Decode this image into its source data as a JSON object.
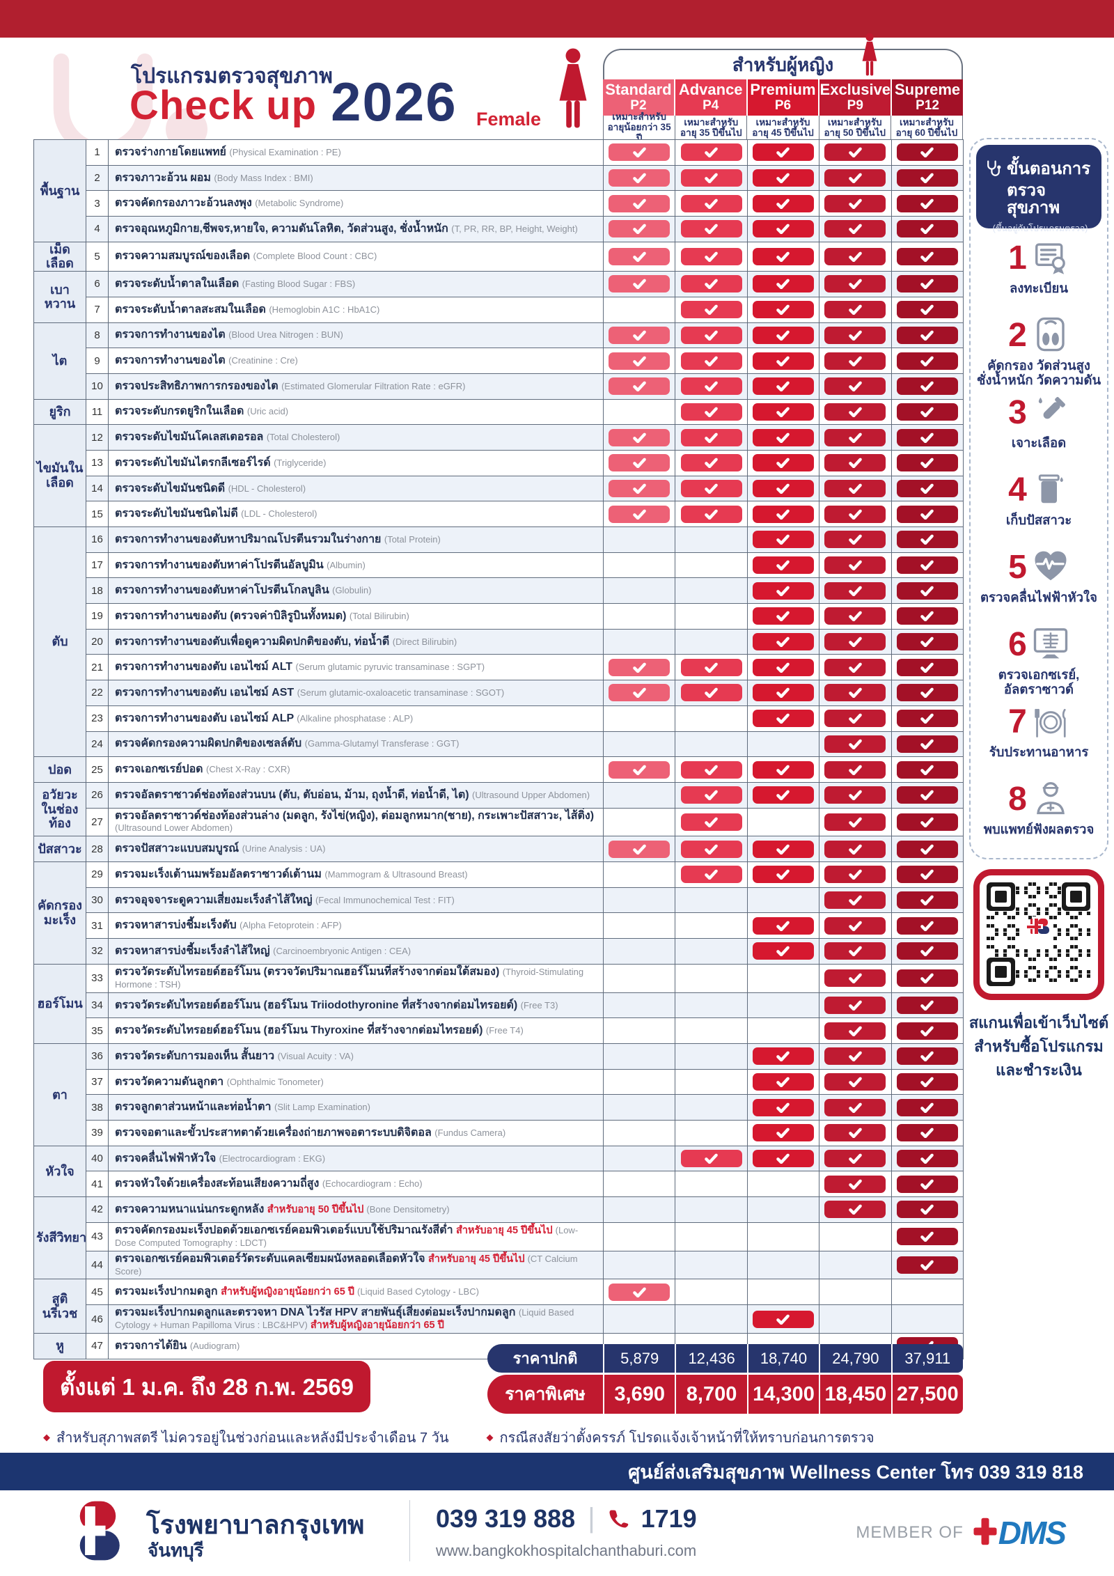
{
  "page": {
    "title_th": "โปรแกรมตรวจสุขภาพ",
    "checkup": "Check up",
    "year": "2026",
    "female": "Female",
    "group_header": "สำหรับผู้หญิง",
    "promo_period": "ตั้งแต่ 1 ม.ค. ถึง 28 ก.พ. 2569",
    "footnote1": "สำหรับสุภาพสตรี ไม่ควรอยู่ในช่วงก่อนและหลังมีประจำเดือน 7 วัน",
    "footnote2": "กรณีสงสัยว่าตั้งครรภ์ โปรดแจ้งเจ้าหน้าที่ให้ทราบก่อนการตรวจ",
    "wellness_bar": "ศูนย์ส่งเสริมสุขภาพ Wellness Center โทร 039 319 818"
  },
  "price_labels": {
    "normal": "ราคาปกติ",
    "special": "ราคาพิเศษ"
  },
  "programs": [
    {
      "name": "Standard",
      "code": "P2",
      "age": "เหมาะสำหรับ\nอายุน้อยกว่า 35 ปี",
      "color": "#ed6176",
      "price_normal": "5,879",
      "price_special": "3,690"
    },
    {
      "name": "Advance",
      "code": "P4",
      "age": "เหมาะสำหรับ\nอายุ 35 ปีขึ้นไป",
      "color": "#e63a52",
      "price_normal": "12,436",
      "price_special": "8,700"
    },
    {
      "name": "Premium",
      "code": "P6",
      "age": "เหมาะสำหรับ\nอายุ 45 ปีขึ้นไป",
      "color": "#d6182f",
      "price_normal": "18,740",
      "price_special": "14,300"
    },
    {
      "name": "Exclusive",
      "code": "P9",
      "age": "เหมาะสำหรับ\nอายุ 50 ปีขึ้นไป",
      "color": "#bf1b32",
      "price_normal": "24,790",
      "price_special": "18,450"
    },
    {
      "name": "Supreme",
      "code": "P12",
      "age": "เหมาะสำหรับ\nอายุ 60 ปีขึ้นไป",
      "color": "#a31127",
      "price_normal": "37,911",
      "price_special": "27,500"
    }
  ],
  "categories": [
    {
      "label": "พื้นฐาน",
      "span": 4
    },
    {
      "label": "เม็ดเลือด",
      "span": 1
    },
    {
      "label": "เบาหวาน",
      "span": 2
    },
    {
      "label": "ไต",
      "span": 3
    },
    {
      "label": "ยูริก",
      "span": 1
    },
    {
      "label": "ไขมันในเลือด",
      "span": 4
    },
    {
      "label": "ตับ",
      "span": 9
    },
    {
      "label": "ปอด",
      "span": 1
    },
    {
      "label": "อวัยวะในช่องท้อง",
      "span": 2
    },
    {
      "label": "ปัสสาวะ",
      "span": 1
    },
    {
      "label": "คัดกรองมะเร็ง",
      "span": 4
    },
    {
      "label": "ฮอร์โมน",
      "span": 3
    },
    {
      "label": "ตา",
      "span": 4
    },
    {
      "label": "หัวใจ",
      "span": 2
    },
    {
      "label": "รังสีวิทยา",
      "span": 3
    },
    {
      "label": "สูตินรีเวช",
      "span": 2
    },
    {
      "label": "หู",
      "span": 1
    }
  ],
  "rows": [
    {
      "no": 1,
      "th": "ตรวจร่างกายโดยแพทย์",
      "en": "(Physical Examination : PE)",
      "checks": [
        1,
        1,
        1,
        1,
        1
      ]
    },
    {
      "no": 2,
      "th": "ตรวจภาวะอ้วน ผอม",
      "en": "(Body Mass Index : BMI)",
      "checks": [
        1,
        1,
        1,
        1,
        1
      ]
    },
    {
      "no": 3,
      "th": "ตรวจคัดกรองภาวะอ้วนลงพุง",
      "en": "(Metabolic Syndrome)",
      "checks": [
        1,
        1,
        1,
        1,
        1
      ]
    },
    {
      "no": 4,
      "th": "ตรวจอุณหภูมิกาย,ชีพจร,หายใจ, ความดันโลหิต, วัดส่วนสูง, ชั่งน้ำหนัก",
      "en": "(T, PR, RR, BP, Height, Weight)",
      "checks": [
        1,
        1,
        1,
        1,
        1
      ]
    },
    {
      "no": 5,
      "th": "ตรวจความสมบูรณ์ของเลือด",
      "en": "(Complete Blood Count : CBC)",
      "checks": [
        1,
        1,
        1,
        1,
        1
      ]
    },
    {
      "no": 6,
      "th": "ตรวจระดับน้ำตาลในเลือด",
      "en": "(Fasting Blood Sugar : FBS)",
      "checks": [
        1,
        1,
        1,
        1,
        1
      ]
    },
    {
      "no": 7,
      "th": "ตรวจระดับน้ำตาลสะสมในเลือด",
      "en": "(Hemoglobin A1C : HbA1C)",
      "checks": [
        0,
        1,
        1,
        1,
        1
      ]
    },
    {
      "no": 8,
      "th": "ตรวจการทำงานของไต",
      "en": "(Blood Urea Nitrogen : BUN)",
      "checks": [
        1,
        1,
        1,
        1,
        1
      ]
    },
    {
      "no": 9,
      "th": "ตรวจการทำงานของไต",
      "en": "(Creatinine : Cre)",
      "checks": [
        1,
        1,
        1,
        1,
        1
      ]
    },
    {
      "no": 10,
      "th": "ตรวจประสิทธิภาพการกรองของไต",
      "en": "(Estimated Glomerular Filtration Rate : eGFR)",
      "checks": [
        1,
        1,
        1,
        1,
        1
      ]
    },
    {
      "no": 11,
      "th": "ตรวจระดับกรดยูริกในเลือด",
      "en": "(Uric acid)",
      "checks": [
        0,
        1,
        1,
        1,
        1
      ]
    },
    {
      "no": 12,
      "th": "ตรวจระดับไขมันโคเลสเตอรอล",
      "en": "(Total Cholesterol)",
      "checks": [
        1,
        1,
        1,
        1,
        1
      ]
    },
    {
      "no": 13,
      "th": "ตรวจระดับไขมันไตรกลีเซอร์ไรด์",
      "en": "(Triglyceride)",
      "checks": [
        1,
        1,
        1,
        1,
        1
      ]
    },
    {
      "no": 14,
      "th": "ตรวจระดับไขมันชนิดดี",
      "en": "(HDL - Cholesterol)",
      "checks": [
        1,
        1,
        1,
        1,
        1
      ]
    },
    {
      "no": 15,
      "th": "ตรวจระดับไขมันชนิดไม่ดี",
      "en": "(LDL - Cholesterol)",
      "checks": [
        1,
        1,
        1,
        1,
        1
      ]
    },
    {
      "no": 16,
      "th": "ตรวจการทำงานของตับหาปริมาณโปรตีนรวมในร่างกาย",
      "en": "(Total Protein)",
      "checks": [
        0,
        0,
        1,
        1,
        1
      ]
    },
    {
      "no": 17,
      "th": "ตรวจการทำงานของตับหาค่าโปรตีนอัลบูมิน",
      "en": "(Albumin)",
      "checks": [
        0,
        0,
        1,
        1,
        1
      ]
    },
    {
      "no": 18,
      "th": "ตรวจการทำงานของตับหาค่าโปรตีนโกลบูลิน",
      "en": "(Globulin)",
      "checks": [
        0,
        0,
        1,
        1,
        1
      ]
    },
    {
      "no": 19,
      "th": "ตรวจการทำงานของตับ (ตรวจค่าบิลิรูบินทั้งหมด)",
      "en": "(Total Bilirubin)",
      "checks": [
        0,
        0,
        1,
        1,
        1
      ]
    },
    {
      "no": 20,
      "th": "ตรวจการทำงานของตับเพื่อดูความผิดปกติของตับ, ท่อน้ำดี",
      "en": "(Direct Bilirubin)",
      "checks": [
        0,
        0,
        1,
        1,
        1
      ]
    },
    {
      "no": 21,
      "th": "ตรวจการทำงานของตับ เอนไซม์ ALT",
      "en": "(Serum glutamic pyruvic transaminase : SGPT)",
      "checks": [
        1,
        1,
        1,
        1,
        1
      ]
    },
    {
      "no": 22,
      "th": "ตรวจการทำงานของตับ เอนไซม์ AST",
      "en": "(Serum glutamic-oxaloacetic transaminase : SGOT)",
      "checks": [
        1,
        1,
        1,
        1,
        1
      ]
    },
    {
      "no": 23,
      "th": "ตรวจการทำงานของตับ เอนไซม์ ALP",
      "en": "(Alkaline phosphatase : ALP)",
      "checks": [
        0,
        0,
        1,
        1,
        1
      ]
    },
    {
      "no": 24,
      "th": "ตรวจคัดกรองความผิดปกติของเซลล์ตับ",
      "en": "(Gamma-Glutamyl Transferase : GGT)",
      "checks": [
        0,
        0,
        0,
        1,
        1
      ]
    },
    {
      "no": 25,
      "th": "ตรวจเอกซเรย์ปอด",
      "en": "(Chest X-Ray : CXR)",
      "checks": [
        1,
        1,
        1,
        1,
        1
      ]
    },
    {
      "no": 26,
      "th": "ตรวจอัลตราซาวด์ช่องท้องส่วนบน (ตับ, ตับอ่อน, ม้าม, ถุงน้ำดี, ท่อน้ำดี, ไต)",
      "en": "(Ultrasound Upper Abdomen)",
      "checks": [
        0,
        1,
        1,
        1,
        1
      ]
    },
    {
      "no": 27,
      "th": "ตรวจอัลตราซาวด์ช่องท้องส่วนล่าง (มดลูก, รังไข่(หญิง), ต่อมลูกหมาก(ชาย), กระเพาะปัสสาวะ, ไส้ติ่ง)",
      "en": "(Ultrasound Lower Abdomen)",
      "checks": [
        0,
        1,
        0,
        1,
        1
      ]
    },
    {
      "no": 28,
      "th": "ตรวจปัสสาวะแบบสมบูรณ์",
      "en": "(Urine Analysis : UA)",
      "checks": [
        1,
        1,
        1,
        1,
        1
      ]
    },
    {
      "no": 29,
      "th": "ตรวจมะเร็งเต้านมพร้อมอัลตราซาวด์เต้านม",
      "en": "(Mammogram & Ultrasound Breast)",
      "checks": [
        0,
        1,
        1,
        1,
        1
      ]
    },
    {
      "no": 30,
      "th": "ตรวจอุจจาระดูความเสี่ยงมะเร็งลำไส้ใหญ่",
      "en": "(Fecal Immunochemical Test : FIT)",
      "checks": [
        0,
        0,
        0,
        1,
        1
      ]
    },
    {
      "no": 31,
      "th": "ตรวจหาสารบ่งชี้มะเร็งตับ",
      "en": "(Alpha Fetoprotein : AFP)",
      "checks": [
        0,
        0,
        1,
        1,
        1
      ]
    },
    {
      "no": 32,
      "th": "ตรวจหาสารบ่งชี้มะเร็งลำไส้ใหญ่",
      "en": "(Carcinoembryonic Antigen : CEA)",
      "checks": [
        0,
        0,
        1,
        1,
        1
      ]
    },
    {
      "no": 33,
      "th": "ตรวจวัดระดับไทรอยด์ฮอร์โมน (ตรวจวัดปริมาณฮอร์โมนที่สร้างจากต่อมใต้สมอง)",
      "en": "(Thyroid-Stimulating Hormone : TSH)",
      "checks": [
        0,
        0,
        0,
        1,
        1
      ]
    },
    {
      "no": 34,
      "th": "ตรวจวัดระดับไทรอยด์ฮอร์โมน (ฮอร์โมน Triiodothyronine ที่สร้างจากต่อมไทรอยด์)",
      "en": "(Free T3)",
      "checks": [
        0,
        0,
        0,
        1,
        1
      ]
    },
    {
      "no": 35,
      "th": "ตรวจวัดระดับไทรอยด์ฮอร์โมน (ฮอร์โมน Thyroxine ที่สร้างจากต่อมไทรอยด์)",
      "en": "(Free T4)",
      "checks": [
        0,
        0,
        0,
        1,
        1
      ]
    },
    {
      "no": 36,
      "th": "ตรวจวัดระดับการมองเห็น สั้นยาว",
      "en": "(Visual Acuity : VA)",
      "checks": [
        0,
        0,
        1,
        1,
        1
      ]
    },
    {
      "no": 37,
      "th": "ตรวจวัดความดันลูกตา",
      "en": "(Ophthalmic Tonometer)",
      "checks": [
        0,
        0,
        1,
        1,
        1
      ]
    },
    {
      "no": 38,
      "th": "ตรวจลูกตาส่วนหน้าและท่อน้ำตา",
      "en": "(Slit Lamp Examination)",
      "checks": [
        0,
        0,
        1,
        1,
        1
      ]
    },
    {
      "no": 39,
      "th": "ตรวจจอตาและขั้วประสาทตาด้วยเครื่องถ่ายภาพจอตาระบบดิจิตอล",
      "en": "(Fundus Camera)",
      "checks": [
        0,
        0,
        1,
        1,
        1
      ]
    },
    {
      "no": 40,
      "th": "ตรวจคลื่นไฟฟ้าหัวใจ",
      "en": "(Electrocardiogram : EKG)",
      "checks": [
        0,
        1,
        1,
        1,
        1
      ]
    },
    {
      "no": 41,
      "th": "ตรวจหัวใจด้วยเครื่องสะท้อนเสียงความถี่สูง",
      "en": "(Echocardiogram : Echo)",
      "checks": [
        0,
        0,
        0,
        1,
        1
      ]
    },
    {
      "no": 42,
      "th": "ตรวจความหนาแน่นกระดูกหลัง",
      "note": "สำหรับอายุ 50 ปีขึ้นไป",
      "en": "(Bone Densitometry)",
      "checks": [
        0,
        0,
        0,
        1,
        1
      ]
    },
    {
      "no": 43,
      "th": "ตรวจคัดกรองมะเร็งปอดด้วยเอกซเรย์คอมพิวเตอร์แบบใช้ปริมาณรังสีต่ำ",
      "note": "สำหรับอายุ 45 ปีขึ้นไป",
      "en": "(Low-Dose Computed Tomography : LDCT)",
      "checks": [
        0,
        0,
        0,
        0,
        1
      ]
    },
    {
      "no": 44,
      "th": "ตรวจเอกซเรย์คอมพิวเตอร์วัดระดับแคลเซียมผนังหลอดเลือดหัวใจ",
      "note": "สำหรับอายุ 45 ปีขึ้นไป",
      "en": "(CT Calcium Score)",
      "checks": [
        0,
        0,
        0,
        0,
        1
      ]
    },
    {
      "no": 45,
      "th": "ตรวจมะเร็งปากมดลูก",
      "note": "สำหรับผู้หญิงอายุน้อยกว่า 65 ปี",
      "en": "(Liquid Based Cytology - LBC)",
      "checks": [
        1,
        0,
        0,
        0,
        0
      ]
    },
    {
      "no": 46,
      "th": "ตรวจมะเร็งปากมดลูกและตรวจหา DNA ไวรัส HPV สายพันธุ์เสี่ยงต่อมะเร็งปากมดลูก",
      "en": "(Liquid Based Cytology + Human Papilloma Virus : LBC&HPV)",
      "note2": "สำหรับผู้หญิงอายุน้อยกว่า 65 ปี",
      "checks": [
        0,
        0,
        1,
        0,
        0
      ]
    },
    {
      "no": 47,
      "th": "ตรวจการได้ยิน",
      "en": "(Audiogram)",
      "checks": [
        0,
        0,
        0,
        0,
        1
      ]
    }
  ],
  "steps": {
    "header_line1": "ขั้นตอนการ",
    "header_line2": "ตรวจสุขภาพ",
    "header_sub": "(ขึ้นอยู่กับโปรแกรมตรวจ)",
    "items": [
      {
        "num": "1",
        "label": "ลงทะเบียน",
        "icon": "register-icon"
      },
      {
        "num": "2",
        "label": "คัดกรอง วัดส่วนสูง\nชั่งน้ำหนัก วัดความดัน",
        "icon": "scale-icon"
      },
      {
        "num": "3",
        "label": "เจาะเลือด",
        "icon": "blood-tube-icon"
      },
      {
        "num": "4",
        "label": "เก็บปัสสาวะ",
        "icon": "urine-cup-icon"
      },
      {
        "num": "5",
        "label": "ตรวจคลื่นไฟฟ้าหัวใจ",
        "icon": "heart-ecg-icon"
      },
      {
        "num": "6",
        "label": "ตรวจเอกซเรย์,\nอัลตราซาวด์",
        "icon": "xray-icon"
      },
      {
        "num": "7",
        "label": "รับประทานอาหาร",
        "icon": "meal-icon"
      },
      {
        "num": "8",
        "label": "พบแพทย์ฟังผลตรวจ",
        "icon": "doctor-icon"
      }
    ]
  },
  "qr": {
    "caption": "สแกนเพื่อเข้าเว็บไซต์\nสำหรับซื้อโปรแกรม\nและชำระเงิน"
  },
  "footer": {
    "hospital_th": "โรงพยาบาลกรุงเทพ",
    "branch": "จันทบุรี",
    "phone": "039 319 888",
    "hotline": "1719",
    "website": "www.bangkokhospitalchanthaburi.com",
    "member_of": "MEMBER OF",
    "bdms": "DMS"
  }
}
